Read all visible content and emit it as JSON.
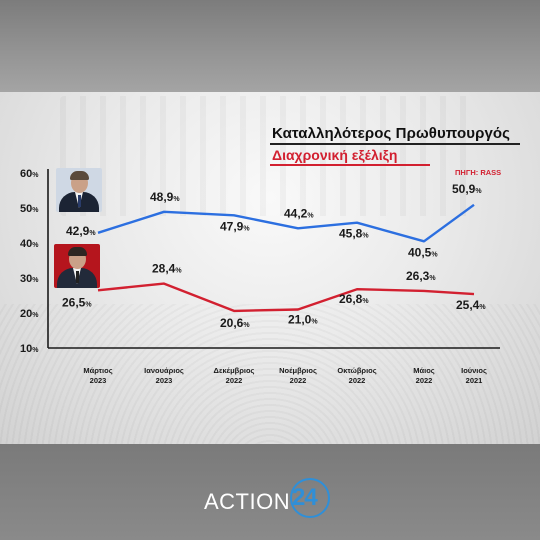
{
  "header": {
    "title": "Καταλληλότερος Πρωθυπουργός",
    "subtitle": "Διαχρονική εξέλιξη",
    "source": "ΠΗΓΗ: RASS"
  },
  "brand": {
    "logo_text": "ACTION",
    "logo_number": "24"
  },
  "colors": {
    "blue_series": "#2c6fe0",
    "red_series": "#d22030"
  },
  "chart_data": {
    "type": "line",
    "categories": [
      "Μάρτιος 2023",
      "Ιανουάριος 2023",
      "Δεκέμβριος 2022",
      "Νοέμβριος 2022",
      "Οκτώβριος 2022",
      "Μάιος 2022",
      "Ιούνιος 2021"
    ],
    "category_lines": [
      [
        "Μάρτιος",
        "2023"
      ],
      [
        "Ιανουάριος",
        "2023"
      ],
      [
        "Δεκέμβριος",
        "2022"
      ],
      [
        "Νοέμβριος",
        "2022"
      ],
      [
        "Οκτώβριος",
        "2022"
      ],
      [
        "Μάιος",
        "2022"
      ],
      [
        "Ιούνιος",
        "2021"
      ]
    ],
    "ylim": [
      10,
      60
    ],
    "yticks": [
      10,
      20,
      30,
      40,
      50,
      60
    ],
    "ytick_labels": [
      "10%",
      "20%",
      "30%",
      "40%",
      "50%",
      "60%"
    ],
    "grid": false,
    "series": [
      {
        "color": "#2c6fe0",
        "values": [
          42.9,
          48.9,
          47.9,
          44.2,
          45.8,
          40.5,
          50.9
        ],
        "labels": [
          "42,9%",
          "48,9%",
          "47,9%",
          "44,2%",
          "45,8%",
          "40,5%",
          "50,9%"
        ]
      },
      {
        "color": "#d22030",
        "values": [
          26.5,
          28.4,
          20.6,
          21.0,
          26.8,
          26.3,
          25.4
        ],
        "labels": [
          "26,5%",
          "28,4%",
          "20,6%",
          "21,0%",
          "26,8%",
          "26,3%",
          "25,4%"
        ]
      }
    ]
  }
}
